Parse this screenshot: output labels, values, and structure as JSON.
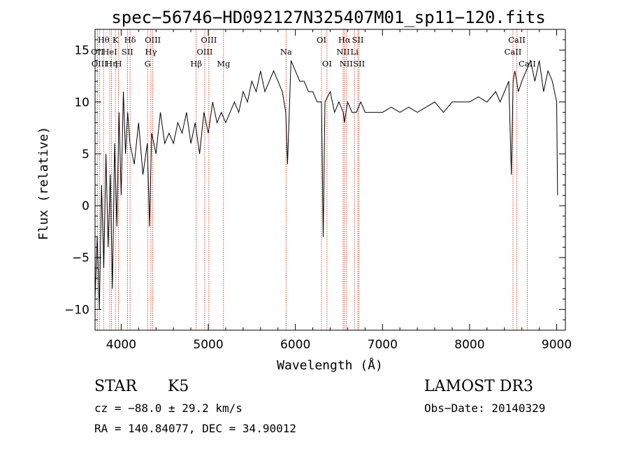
{
  "chart_data": {
    "type": "line",
    "title": "spec−56746−HD092127N325407M01_sp11−120.fits",
    "xlabel": "Wavelength (Å)",
    "ylabel": "Flux (relative)",
    "xlim": [
      3700,
      9100
    ],
    "ylim": [
      -12,
      17
    ],
    "xticks": [
      4000,
      5000,
      6000,
      7000,
      8000,
      9000
    ],
    "xtick_labels": [
      "4000",
      "5000",
      "6000",
      "7000",
      "8000",
      "9000"
    ],
    "yticks": [
      -10,
      -5,
      0,
      5,
      10,
      15
    ],
    "ytick_labels": [
      "−10",
      "−5",
      "0",
      "5",
      "10",
      "15"
    ],
    "series": [
      {
        "name": "flux",
        "x": [
          3700,
          3725,
          3750,
          3775,
          3800,
          3825,
          3850,
          3875,
          3900,
          3925,
          3950,
          3975,
          4000,
          4025,
          4050,
          4075,
          4100,
          4150,
          4200,
          4250,
          4300,
          4325,
          4350,
          4400,
          4450,
          4500,
          4550,
          4600,
          4650,
          4700,
          4750,
          4800,
          4850,
          4900,
          4950,
          5000,
          5050,
          5100,
          5150,
          5200,
          5250,
          5300,
          5350,
          5400,
          5450,
          5500,
          5550,
          5600,
          5650,
          5700,
          5750,
          5800,
          5850,
          5890,
          5910,
          5950,
          6000,
          6050,
          6100,
          6150,
          6200,
          6250,
          6300,
          6320,
          6340,
          6400,
          6450,
          6500,
          6550,
          6563,
          6600,
          6650,
          6700,
          6750,
          6800,
          6900,
          7000,
          7100,
          7200,
          7300,
          7400,
          7500,
          7600,
          7700,
          7800,
          7900,
          8000,
          8100,
          8200,
          8300,
          8350,
          8400,
          8450,
          8480,
          8500,
          8520,
          8540,
          8560,
          8600,
          8650,
          8700,
          8750,
          8800,
          8850,
          8900,
          8950,
          9000,
          9010
        ],
        "y": [
          -9,
          -3,
          -10,
          2,
          -6,
          5,
          -4,
          3,
          -8,
          6,
          -2,
          9,
          1,
          11,
          5,
          9,
          6,
          4,
          8,
          3,
          6,
          -2,
          7,
          5,
          9,
          6,
          7,
          6,
          8,
          7,
          9,
          6,
          8,
          5,
          9,
          7,
          10,
          8,
          9,
          8,
          9,
          10,
          9,
          11,
          10,
          12,
          11,
          13,
          11,
          12,
          13,
          12,
          11,
          9,
          4,
          14,
          13,
          12,
          12,
          11,
          11,
          10,
          10,
          -3,
          10,
          11,
          9,
          10,
          9,
          8,
          10,
          9,
          9,
          10,
          9,
          9,
          9,
          9.5,
          9,
          9.5,
          9,
          9.5,
          10,
          9,
          10,
          10,
          10,
          10.5,
          10,
          11,
          10,
          11,
          12,
          3,
          12,
          13,
          12,
          11,
          12,
          13,
          14,
          12,
          14,
          11,
          13,
          12,
          10,
          1
        ]
      }
    ],
    "spectral_lines": [
      {
        "wavelength": 3727,
        "label": "OII",
        "row": 2
      },
      {
        "wavelength": 3750,
        "label": "OIII",
        "row": 3
      },
      {
        "wavelength": 3798,
        "label": "Hθ",
        "row": 1
      },
      {
        "wavelength": 3869,
        "label": "HeI",
        "row": 2
      },
      {
        "wavelength": 3889,
        "label": "Hη",
        "row": 3
      },
      {
        "wavelength": 3934,
        "label": "K",
        "row": 1
      },
      {
        "wavelength": 3969,
        "label": "H",
        "row": 3
      },
      {
        "wavelength": 4072,
        "label": "SII",
        "row": 2
      },
      {
        "wavelength": 4102,
        "label": "Hδ",
        "row": 1
      },
      {
        "wavelength": 4304,
        "label": "G",
        "row": 3
      },
      {
        "wavelength": 4341,
        "label": "Hγ",
        "row": 2
      },
      {
        "wavelength": 4363,
        "label": "OIII",
        "row": 1
      },
      {
        "wavelength": 4861,
        "label": "Hβ",
        "row": 3
      },
      {
        "wavelength": 4959,
        "label": "OIII",
        "row": 2
      },
      {
        "wavelength": 5007,
        "label": "OIII",
        "row": 1
      },
      {
        "wavelength": 5175,
        "label": "Mg",
        "row": 3
      },
      {
        "wavelength": 5893,
        "label": "Na",
        "row": 2
      },
      {
        "wavelength": 6300,
        "label": "OI",
        "row": 1
      },
      {
        "wavelength": 6363,
        "label": "OI",
        "row": 3
      },
      {
        "wavelength": 6548,
        "label": "NII",
        "row": 2
      },
      {
        "wavelength": 6563,
        "label": "Hα",
        "row": 1
      },
      {
        "wavelength": 6583,
        "label": "NII",
        "row": 3
      },
      {
        "wavelength": 6678,
        "label": "Li",
        "row": 2
      },
      {
        "wavelength": 6717,
        "label": "SII",
        "row": 1
      },
      {
        "wavelength": 6731,
        "label": "SII",
        "row": 3
      },
      {
        "wavelength": 8498,
        "label": "CaII",
        "row": 2
      },
      {
        "wavelength": 8542,
        "label": "CaII",
        "row": 1
      },
      {
        "wavelength": 8662,
        "label": "CaII",
        "row": 3
      }
    ],
    "colors": {
      "line": "#000000",
      "marker_lines": "#cc2200",
      "axes": "#000000"
    }
  },
  "info": {
    "object_class": "STAR",
    "subclass": "K5",
    "survey": "LAMOST DR3",
    "cz": "cz = −88.0 ± 29.2 km/s",
    "obs_date": "Obs−Date: 20140329",
    "coords": "RA = 140.84077, DEC =  34.90012"
  }
}
